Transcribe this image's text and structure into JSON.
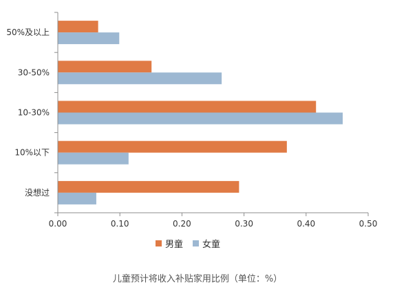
{
  "chart_data": {
    "type": "bar",
    "orientation": "horizontal",
    "categories": [
      "50%及以上",
      "30-50%",
      "10-30%",
      "10%以下",
      "没想过"
    ],
    "series": [
      {
        "name": "男童",
        "color": "#E07B45",
        "values": [
          0.065,
          0.151,
          0.416,
          0.369,
          0.292
        ]
      },
      {
        "name": "女童",
        "color": "#9DB8D2",
        "values": [
          0.099,
          0.264,
          0.459,
          0.114,
          0.062
        ]
      }
    ],
    "xlim": [
      0,
      0.5
    ],
    "xticks": [
      "0.00",
      "0.10",
      "0.20",
      "0.30",
      "0.40",
      "0.50"
    ],
    "grid": false,
    "legend_position": "bottom",
    "caption": "儿童预计将收入补贴家用比例（单位：%）"
  }
}
